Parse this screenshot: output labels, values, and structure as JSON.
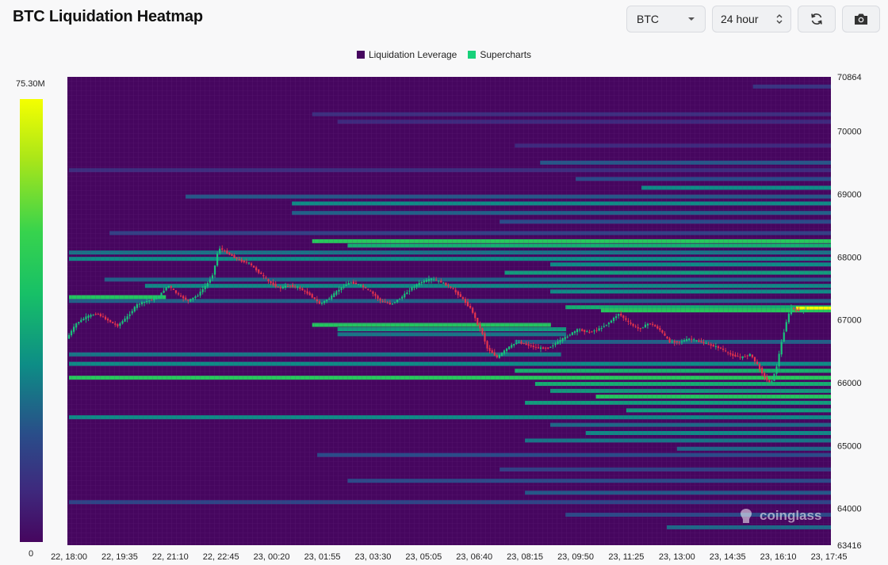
{
  "header": {
    "title": "BTC Liquidation Heatmap",
    "coin_select": "BTC",
    "range_select": "24 hour",
    "refresh_icon": "refresh-icon",
    "camera_icon": "camera-icon"
  },
  "legend": [
    {
      "label": "Liquidation Leverage",
      "color": "#46065f"
    },
    {
      "label": "Supercharts",
      "color": "#17d17a"
    }
  ],
  "colorscale": {
    "max_label": "75.30M",
    "min_label": "0"
  },
  "watermark": "coinglass",
  "chart_data": {
    "type": "heatmap",
    "title": "BTC Liquidation Heatmap",
    "x_tick_labels": [
      "22, 18:00",
      "22, 19:35",
      "22, 21:10",
      "22, 22:45",
      "23, 00:20",
      "23, 01:55",
      "23, 03:30",
      "23, 05:05",
      "23, 06:40",
      "23, 08:15",
      "23, 09:50",
      "23, 11:25",
      "23, 13:00",
      "23, 14:35",
      "23, 16:10",
      "23, 17:45"
    ],
    "y_tick_labels": [
      "70864",
      "70000",
      "69000",
      "68000",
      "67000",
      "66000",
      "65000",
      "64000",
      "63416"
    ],
    "ylim": [
      63416,
      70864
    ],
    "colorscale": {
      "min": 0,
      "max": 75300000,
      "unit": "USD"
    },
    "background_color": "#46065f",
    "liquidation_bands": [
      {
        "price": 70710,
        "start": 13.5,
        "end": 15,
        "intensity": 0.25
      },
      {
        "price": 70270,
        "start": 4.8,
        "end": 15,
        "intensity": 0.22
      },
      {
        "price": 70150,
        "start": 5.3,
        "end": 15,
        "intensity": 0.2
      },
      {
        "price": 69770,
        "start": 8.8,
        "end": 15,
        "intensity": 0.2
      },
      {
        "price": 69500,
        "start": 9.3,
        "end": 15,
        "intensity": 0.38
      },
      {
        "price": 69380,
        "start": 0,
        "end": 15,
        "intensity": 0.22
      },
      {
        "price": 69240,
        "start": 10,
        "end": 15,
        "intensity": 0.35
      },
      {
        "price": 69100,
        "start": 11.3,
        "end": 15,
        "intensity": 0.5
      },
      {
        "price": 68960,
        "start": 2.3,
        "end": 15,
        "intensity": 0.38
      },
      {
        "price": 68850,
        "start": 4.4,
        "end": 15,
        "intensity": 0.5
      },
      {
        "price": 68700,
        "start": 4.4,
        "end": 15,
        "intensity": 0.4
      },
      {
        "price": 68560,
        "start": 8.5,
        "end": 15,
        "intensity": 0.35
      },
      {
        "price": 68380,
        "start": 0.8,
        "end": 15,
        "intensity": 0.3
      },
      {
        "price": 68250,
        "start": 4.8,
        "end": 15,
        "intensity": 0.72
      },
      {
        "price": 68180,
        "start": 5.5,
        "end": 15,
        "intensity": 0.6
      },
      {
        "price": 68070,
        "start": 0,
        "end": 15,
        "intensity": 0.45
      },
      {
        "price": 67970,
        "start": 0,
        "end": 15,
        "intensity": 0.5
      },
      {
        "price": 67880,
        "start": 9.5,
        "end": 15,
        "intensity": 0.5
      },
      {
        "price": 67750,
        "start": 8.6,
        "end": 15,
        "intensity": 0.55
      },
      {
        "price": 67640,
        "start": 0.7,
        "end": 15,
        "intensity": 0.4
      },
      {
        "price": 67540,
        "start": 1.5,
        "end": 15,
        "intensity": 0.5
      },
      {
        "price": 67450,
        "start": 9.5,
        "end": 15,
        "intensity": 0.5
      },
      {
        "price": 67360,
        "start": 0,
        "end": 1.6,
        "intensity": 0.7
      },
      {
        "price": 67300,
        "start": 0,
        "end": 15,
        "intensity": 0.4
      },
      {
        "price": 67200,
        "start": 9.8,
        "end": 15,
        "intensity": 0.6
      },
      {
        "price": 67150,
        "start": 10.5,
        "end": 15,
        "intensity": 0.72
      },
      {
        "price": 66920,
        "start": 4.8,
        "end": 9.2,
        "intensity": 0.7
      },
      {
        "price": 66850,
        "start": 5.3,
        "end": 9.5,
        "intensity": 0.55
      },
      {
        "price": 66770,
        "start": 5.3,
        "end": 9.5,
        "intensity": 0.45
      },
      {
        "price": 66650,
        "start": 8.8,
        "end": 15,
        "intensity": 0.4
      },
      {
        "price": 66450,
        "start": 0,
        "end": 9.4,
        "intensity": 0.45
      },
      {
        "price": 66300,
        "start": 0,
        "end": 15,
        "intensity": 0.5
      },
      {
        "price": 66190,
        "start": 8.8,
        "end": 15,
        "intensity": 0.62
      },
      {
        "price": 66080,
        "start": 0,
        "end": 15,
        "intensity": 0.72
      },
      {
        "price": 65980,
        "start": 9.2,
        "end": 15,
        "intensity": 0.6
      },
      {
        "price": 65870,
        "start": 9.5,
        "end": 15,
        "intensity": 0.55
      },
      {
        "price": 65780,
        "start": 10.4,
        "end": 15,
        "intensity": 0.7
      },
      {
        "price": 65680,
        "start": 9.0,
        "end": 15,
        "intensity": 0.55
      },
      {
        "price": 65560,
        "start": 11.0,
        "end": 15,
        "intensity": 0.55
      },
      {
        "price": 65450,
        "start": 0,
        "end": 15,
        "intensity": 0.5
      },
      {
        "price": 65330,
        "start": 9.5,
        "end": 15,
        "intensity": 0.42
      },
      {
        "price": 65200,
        "start": 10.2,
        "end": 15,
        "intensity": 0.5
      },
      {
        "price": 65080,
        "start": 9.0,
        "end": 15,
        "intensity": 0.45
      },
      {
        "price": 64950,
        "start": 12.0,
        "end": 15,
        "intensity": 0.42
      },
      {
        "price": 64850,
        "start": 4.9,
        "end": 15,
        "intensity": 0.35
      },
      {
        "price": 64620,
        "start": 8.5,
        "end": 15,
        "intensity": 0.3
      },
      {
        "price": 64440,
        "start": 5.5,
        "end": 15,
        "intensity": 0.35
      },
      {
        "price": 64250,
        "start": 9.0,
        "end": 15,
        "intensity": 0.38
      },
      {
        "price": 64100,
        "start": 0,
        "end": 15,
        "intensity": 0.32
      },
      {
        "price": 63900,
        "start": 9.8,
        "end": 15,
        "intensity": 0.35
      },
      {
        "price": 63700,
        "start": 11.8,
        "end": 15,
        "intensity": 0.42
      }
    ],
    "hot_spot": {
      "price": 67180,
      "start": 14.35,
      "end": 14.8,
      "intensity": 1.0
    },
    "price_series": [
      {
        "t": 0.0,
        "p": 66700
      },
      {
        "t": 0.2,
        "p": 66950
      },
      {
        "t": 0.4,
        "p": 67050
      },
      {
        "t": 0.6,
        "p": 67100
      },
      {
        "t": 0.8,
        "p": 67000
      },
      {
        "t": 1.0,
        "p": 66900
      },
      {
        "t": 1.2,
        "p": 67050
      },
      {
        "t": 1.4,
        "p": 67250
      },
      {
        "t": 1.6,
        "p": 67300
      },
      {
        "t": 1.8,
        "p": 67350
      },
      {
        "t": 2.0,
        "p": 67550
      },
      {
        "t": 2.2,
        "p": 67400
      },
      {
        "t": 2.4,
        "p": 67300
      },
      {
        "t": 2.6,
        "p": 67400
      },
      {
        "t": 2.8,
        "p": 67600
      },
      {
        "t": 2.9,
        "p": 67750
      },
      {
        "t": 3.0,
        "p": 68150
      },
      {
        "t": 3.2,
        "p": 68050
      },
      {
        "t": 3.4,
        "p": 67950
      },
      {
        "t": 3.6,
        "p": 67900
      },
      {
        "t": 3.8,
        "p": 67750
      },
      {
        "t": 4.0,
        "p": 67600
      },
      {
        "t": 4.2,
        "p": 67500
      },
      {
        "t": 4.4,
        "p": 67550
      },
      {
        "t": 4.6,
        "p": 67500
      },
      {
        "t": 4.8,
        "p": 67400
      },
      {
        "t": 5.0,
        "p": 67250
      },
      {
        "t": 5.2,
        "p": 67350
      },
      {
        "t": 5.4,
        "p": 67500
      },
      {
        "t": 5.6,
        "p": 67600
      },
      {
        "t": 5.8,
        "p": 67550
      },
      {
        "t": 6.0,
        "p": 67450
      },
      {
        "t": 6.2,
        "p": 67300
      },
      {
        "t": 6.4,
        "p": 67250
      },
      {
        "t": 6.6,
        "p": 67350
      },
      {
        "t": 6.8,
        "p": 67500
      },
      {
        "t": 7.0,
        "p": 67600
      },
      {
        "t": 7.2,
        "p": 67650
      },
      {
        "t": 7.4,
        "p": 67600
      },
      {
        "t": 7.6,
        "p": 67500
      },
      {
        "t": 7.8,
        "p": 67350
      },
      {
        "t": 8.0,
        "p": 67150
      },
      {
        "t": 8.1,
        "p": 66950
      },
      {
        "t": 8.2,
        "p": 66800
      },
      {
        "t": 8.3,
        "p": 66550
      },
      {
        "t": 8.5,
        "p": 66400
      },
      {
        "t": 8.7,
        "p": 66550
      },
      {
        "t": 8.9,
        "p": 66650
      },
      {
        "t": 9.1,
        "p": 66600
      },
      {
        "t": 9.3,
        "p": 66550
      },
      {
        "t": 9.5,
        "p": 66550
      },
      {
        "t": 9.7,
        "p": 66650
      },
      {
        "t": 9.9,
        "p": 66750
      },
      {
        "t": 10.1,
        "p": 66850
      },
      {
        "t": 10.3,
        "p": 66800
      },
      {
        "t": 10.5,
        "p": 66850
      },
      {
        "t": 10.7,
        "p": 66950
      },
      {
        "t": 10.9,
        "p": 67100
      },
      {
        "t": 11.1,
        "p": 66950
      },
      {
        "t": 11.3,
        "p": 66850
      },
      {
        "t": 11.5,
        "p": 66950
      },
      {
        "t": 11.7,
        "p": 66850
      },
      {
        "t": 11.9,
        "p": 66650
      },
      {
        "t": 12.1,
        "p": 66650
      },
      {
        "t": 12.3,
        "p": 66700
      },
      {
        "t": 12.5,
        "p": 66650
      },
      {
        "t": 12.7,
        "p": 66600
      },
      {
        "t": 12.9,
        "p": 66550
      },
      {
        "t": 13.1,
        "p": 66450
      },
      {
        "t": 13.3,
        "p": 66400
      },
      {
        "t": 13.5,
        "p": 66450
      },
      {
        "t": 13.7,
        "p": 66200
      },
      {
        "t": 13.8,
        "p": 66050
      },
      {
        "t": 13.9,
        "p": 66000
      },
      {
        "t": 14.0,
        "p": 66200
      },
      {
        "t": 14.1,
        "p": 66600
      },
      {
        "t": 14.2,
        "p": 66950
      },
      {
        "t": 14.3,
        "p": 67200
      },
      {
        "t": 14.4,
        "p": 67150
      },
      {
        "t": 14.55,
        "p": 67150
      }
    ]
  }
}
